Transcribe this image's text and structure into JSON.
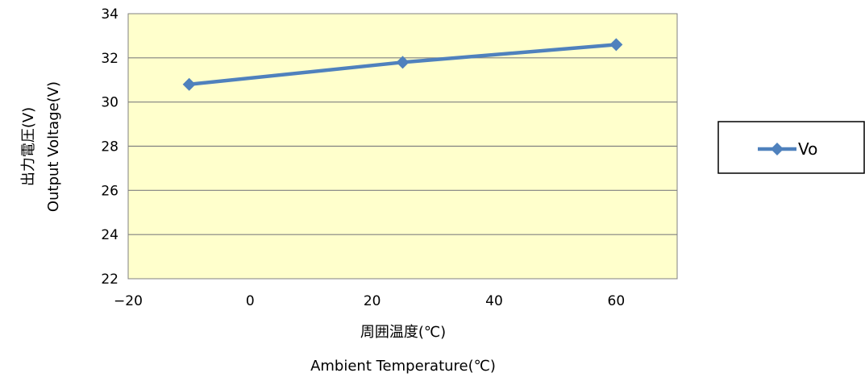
{
  "colors": {
    "plot_background": "#FFFFCC",
    "series_line": "#4F81BD",
    "gridline": "#808080",
    "border": "#000000"
  },
  "chart_data": {
    "type": "scatter",
    "title": "",
    "xlabel_lines": [
      "周囲温度(℃)",
      "Ambient Temperature(℃)"
    ],
    "ylabel_lines": [
      "出力電圧(V)",
      "Output  Voltage(V)"
    ],
    "xlim": [
      -20,
      70
    ],
    "ylim": [
      22,
      34
    ],
    "x_ticks": [
      -20,
      0,
      20,
      40,
      60
    ],
    "x_tick_labels": [
      "−20",
      "0",
      "20",
      "40",
      "60"
    ],
    "y_ticks": [
      22,
      24,
      26,
      28,
      30,
      32,
      34
    ],
    "y_tick_labels": [
      "22",
      "24",
      "26",
      "28",
      "30",
      "32",
      "34"
    ],
    "grid": "horizontal",
    "legend_position": "right",
    "series": [
      {
        "name": "Vo",
        "marker": "diamond",
        "x": [
          -10,
          25,
          60
        ],
        "y": [
          30.8,
          31.8,
          32.6
        ]
      }
    ]
  }
}
